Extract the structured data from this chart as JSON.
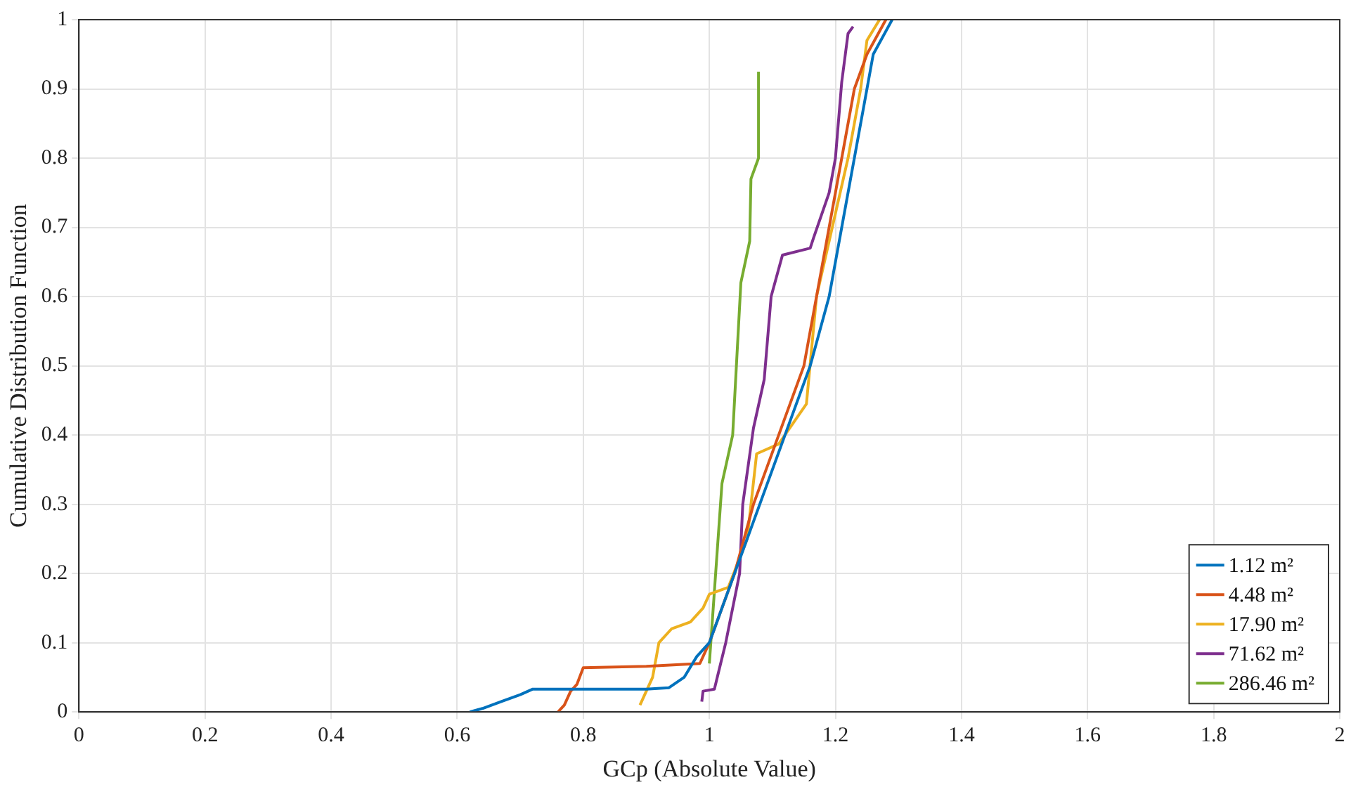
{
  "chart_data": {
    "type": "line",
    "xlabel": "GCp (Absolute Value)",
    "ylabel": "Cumulative Distribution Function",
    "xlim": [
      0,
      2
    ],
    "xticks": [
      0,
      0.2,
      0.4,
      0.6,
      0.8,
      1,
      1.2,
      1.4,
      1.6,
      1.8,
      2
    ],
    "ylim": [
      0,
      1
    ],
    "yticks": [
      0,
      0.1,
      0.2,
      0.3,
      0.4,
      0.5,
      0.6,
      0.7,
      0.8,
      0.9,
      1
    ],
    "grid": true,
    "legend": "bottom right",
    "marker": "none",
    "line_style": "solid",
    "series": [
      {
        "name": "1.12 m²",
        "color": "#0072bd",
        "x": [
          0.62,
          0.64,
          0.67,
          0.7,
          0.72,
          0.8,
          0.9,
          0.936,
          0.96,
          0.98,
          1.0,
          1.04,
          1.08,
          1.12,
          1.16,
          1.19,
          1.21,
          1.23,
          1.25,
          1.26,
          1.29
        ],
        "values": [
          0,
          0.005,
          0.015,
          0.025,
          0.033,
          0.033,
          0.033,
          0.035,
          0.05,
          0.08,
          0.1,
          0.2,
          0.3,
          0.4,
          0.5,
          0.6,
          0.7,
          0.8,
          0.9,
          0.95,
          1
        ]
      },
      {
        "name": "4.48 m²",
        "color": "#d95319",
        "x": [
          0.76,
          0.77,
          0.78,
          0.79,
          0.8,
          0.9,
          0.985,
          0.99,
          1.0,
          1.04,
          1.07,
          1.11,
          1.15,
          1.17,
          1.19,
          1.21,
          1.23,
          1.25,
          1.28
        ],
        "values": [
          0,
          0.01,
          0.03,
          0.04,
          0.064,
          0.066,
          0.07,
          0.08,
          0.1,
          0.2,
          0.3,
          0.4,
          0.5,
          0.6,
          0.7,
          0.8,
          0.9,
          0.95,
          1
        ]
      },
      {
        "name": "17.90 m²",
        "color": "#edb120",
        "x": [
          0.89,
          0.9,
          0.91,
          0.92,
          0.94,
          0.97,
          0.99,
          1.0,
          1.03,
          1.06,
          1.075,
          1.11,
          1.154,
          1.17,
          1.19,
          1.22,
          1.24,
          1.25,
          1.27
        ],
        "values": [
          0.01,
          0.03,
          0.05,
          0.1,
          0.12,
          0.13,
          0.15,
          0.17,
          0.18,
          0.25,
          0.373,
          0.387,
          0.445,
          0.6,
          0.68,
          0.8,
          0.9,
          0.97,
          1
        ]
      },
      {
        "name": "71.62 m²",
        "color": "#7e2f8e",
        "x": [
          0.988,
          0.99,
          1.008,
          1.026,
          1.048,
          1.053,
          1.07,
          1.087,
          1.098,
          1.116,
          1.16,
          1.165,
          1.19,
          1.2,
          1.21,
          1.22,
          1.228
        ],
        "values": [
          0.015,
          0.03,
          0.033,
          0.1,
          0.2,
          0.3,
          0.41,
          0.48,
          0.6,
          0.66,
          0.67,
          0.684,
          0.75,
          0.8,
          0.91,
          0.98,
          0.99
        ]
      },
      {
        "name": "286.46 m²",
        "color": "#77ac30",
        "x": [
          1.0,
          1.01,
          1.02,
          1.037,
          1.05,
          1.064,
          1.066,
          1.078,
          1.078
        ],
        "values": [
          0.07,
          0.2,
          0.33,
          0.4,
          0.62,
          0.68,
          0.77,
          0.8,
          0.925
        ]
      }
    ]
  }
}
